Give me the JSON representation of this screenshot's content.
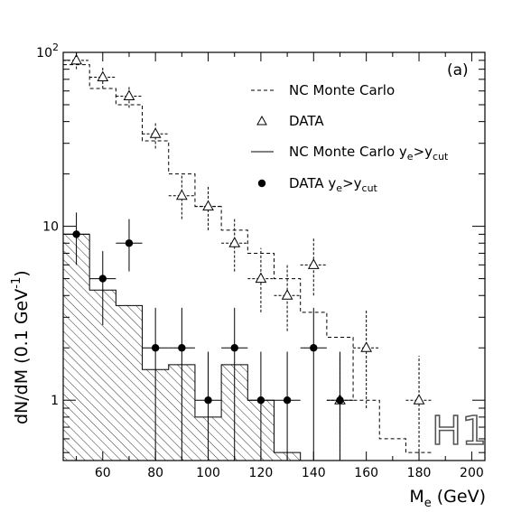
{
  "chart_data": {
    "type": "histogram",
    "x_scale": "linear",
    "y_scale": "log",
    "xlim": [
      45,
      205
    ],
    "ylim": [
      0.45,
      100
    ],
    "grid": false,
    "panel_label": "(a)",
    "xlabel": "M",
    "xlabel_sub": "e",
    "xlabel_unit": " (GeV)",
    "ylabel": "dN/dM  (0.1 GeV",
    "ylabel_sup": "-1",
    "ylabel_close": ")",
    "x_tick_labels": [
      "60",
      "80",
      "100",
      "120",
      "140",
      "160",
      "180",
      "200"
    ],
    "x_ticks": [
      60,
      80,
      100,
      120,
      140,
      160,
      180,
      200
    ],
    "y_tick_labels": [
      {
        "value": 1,
        "base": "1",
        "sup": ""
      },
      {
        "value": 10,
        "base": "10",
        "sup": ""
      },
      {
        "value": 100,
        "base": "10",
        "sup": "2"
      }
    ],
    "legend": {
      "placement": "top-right",
      "entries": [
        {
          "style": "dashed",
          "label": "NC Monte Carlo",
          "sub": ""
        },
        {
          "style": "triangle",
          "label": "DATA",
          "sub": ""
        },
        {
          "style": "solid",
          "label": "NC Monte Carlo y",
          "sub": "e",
          "mid": ">y",
          "sub2": "cut"
        },
        {
          "style": "dot",
          "label": "DATA  y",
          "sub": "e",
          "mid": ">y",
          "sub2": "cut"
        }
      ]
    },
    "logo": "H1",
    "series": [
      {
        "name": "NC Monte Carlo",
        "style": "dashed-step",
        "edges": [
          45,
          55,
          65,
          75,
          85,
          95,
          105,
          115,
          125,
          135,
          145,
          155,
          165,
          175,
          185
        ],
        "values": [
          85,
          62,
          50,
          31,
          20,
          13,
          9.5,
          7,
          5,
          3.2,
          2.3,
          1.0,
          0.6,
          0.5
        ]
      },
      {
        "name": "NC Monte Carlo y_e>y_cut",
        "style": "solid-hatched-step",
        "edges": [
          45,
          55,
          65,
          75,
          85,
          95,
          105,
          115,
          125,
          135,
          145,
          155,
          165
        ],
        "values": [
          9.0,
          4.3,
          3.5,
          1.5,
          1.6,
          0.8,
          1.6,
          1.0,
          0.5,
          0.45,
          0.45,
          0.45
        ]
      },
      {
        "name": "DATA",
        "style": "triangle",
        "points": [
          {
            "x": 50,
            "y": 90,
            "lo": 80,
            "hi": 100
          },
          {
            "x": 60,
            "y": 72,
            "lo": 62,
            "hi": 82
          },
          {
            "x": 70,
            "y": 56,
            "lo": 48,
            "hi": 64
          },
          {
            "x": 80,
            "y": 34,
            "lo": 28,
            "hi": 40
          },
          {
            "x": 90,
            "y": 15,
            "lo": 11,
            "hi": 20
          },
          {
            "x": 100,
            "y": 13,
            "lo": 9.5,
            "hi": 17
          },
          {
            "x": 110,
            "y": 8,
            "lo": 5.5,
            "hi": 11
          },
          {
            "x": 120,
            "y": 5,
            "lo": 3.2,
            "hi": 7.5
          },
          {
            "x": 130,
            "y": 4,
            "lo": 2.5,
            "hi": 6
          },
          {
            "x": 140,
            "y": 6,
            "lo": 4.0,
            "hi": 8.5
          },
          {
            "x": 150,
            "y": 1,
            "lo": 0.45,
            "hi": 1.8
          },
          {
            "x": 160,
            "y": 2,
            "lo": 0.9,
            "hi": 3.3
          },
          {
            "x": 180,
            "y": 1,
            "lo": 0.45,
            "hi": 1.8
          }
        ]
      },
      {
        "name": "DATA y_e>y_cut",
        "style": "dot",
        "points": [
          {
            "x": 50,
            "y": 9,
            "lo": 6,
            "hi": 12
          },
          {
            "x": 60,
            "y": 5,
            "lo": 2.7,
            "hi": 7.2
          },
          {
            "x": 70,
            "y": 8,
            "lo": 5.5,
            "hi": 11
          },
          {
            "x": 80,
            "y": 2,
            "lo": 0.45,
            "hi": 3.4
          },
          {
            "x": 90,
            "y": 2,
            "lo": 0.45,
            "hi": 3.4
          },
          {
            "x": 100,
            "y": 1,
            "lo": 0.45,
            "hi": 1.9
          },
          {
            "x": 110,
            "y": 2,
            "lo": 0.45,
            "hi": 3.4
          },
          {
            "x": 120,
            "y": 1,
            "lo": 0.45,
            "hi": 1.9
          },
          {
            "x": 130,
            "y": 1,
            "lo": 0.45,
            "hi": 1.9
          },
          {
            "x": 140,
            "y": 2,
            "lo": 0.45,
            "hi": 3.4
          },
          {
            "x": 150,
            "y": 1,
            "lo": 0.45,
            "hi": 1.9
          }
        ]
      }
    ]
  }
}
